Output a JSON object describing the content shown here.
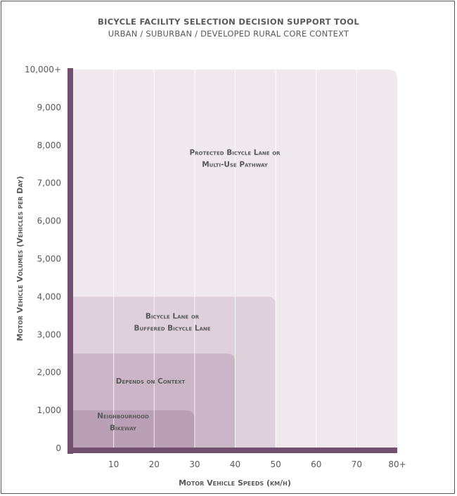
{
  "chart_data": {
    "type": "area",
    "title": "Bicycle Facility Selection Decision Support Tool",
    "subtitle": "URBAN / SUBURBAN / DEVELOPED RURAL CORE CONTEXT",
    "xlabel": "Motor Vehicle Speeds (km/h)",
    "ylabel": "Motor Vehicle Volumes (Vehicles per Day)",
    "xlim": [
      0,
      80
    ],
    "ylim": [
      0,
      10000
    ],
    "x_ticks": [
      "10",
      "20",
      "30",
      "40",
      "50",
      "60",
      "70",
      "80+"
    ],
    "y_ticks": [
      "0",
      "1,000",
      "2,000",
      "3,000",
      "4,000",
      "5,000",
      "6,000",
      "7,000",
      "8,000",
      "9,000",
      "10,000+"
    ],
    "grid": true,
    "zones": [
      {
        "lines": [
          "Protected Bicycle Lane or",
          "Multi-Use Pathway"
        ],
        "x_max": 80,
        "y_max": 10000,
        "color": "#efe9ee"
      },
      {
        "lines": [
          "Bicycle Lane or",
          "Buffered Bicycle Lane"
        ],
        "x_max": 50,
        "y_max": 4000,
        "color": "#dfd1dc"
      },
      {
        "lines": [
          "Depends on Context"
        ],
        "x_max": 40,
        "y_max": 2500,
        "color": "#cbb6c7"
      },
      {
        "lines": [
          "Neighbourhood",
          "Bikeway"
        ],
        "x_max": 30,
        "y_max": 1000,
        "color": "#b9a0b4"
      }
    ],
    "axis_color": "#73506f"
  }
}
